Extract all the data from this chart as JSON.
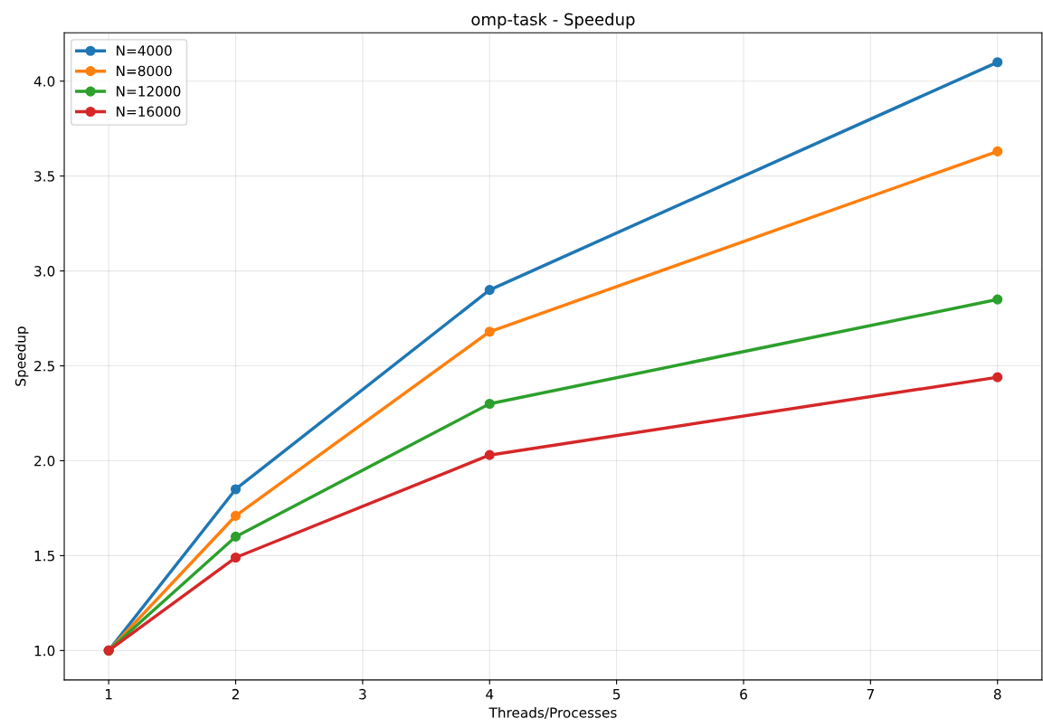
{
  "chart_data": {
    "type": "line",
    "title": "omp-task - Speedup",
    "xlabel": "Threads/Processes",
    "ylabel": "Speedup",
    "x": [
      1,
      2,
      4,
      8
    ],
    "series": [
      {
        "name": "N=4000",
        "color": "#1f77b4",
        "values": [
          1.0,
          1.85,
          2.9,
          4.1
        ]
      },
      {
        "name": "N=8000",
        "color": "#ff7f0e",
        "values": [
          1.0,
          1.71,
          2.68,
          3.63
        ]
      },
      {
        "name": "N=12000",
        "color": "#2ca02c",
        "values": [
          1.0,
          1.6,
          2.3,
          2.85
        ]
      },
      {
        "name": "N=16000",
        "color": "#d62728",
        "values": [
          1.0,
          1.49,
          2.03,
          2.44
        ]
      }
    ],
    "xlim": [
      0.65,
      8.35
    ],
    "xticks": [
      1,
      2,
      3,
      4,
      5,
      6,
      7,
      8
    ],
    "ylim": [
      0.845,
      4.255
    ],
    "yticks": [
      {
        "value": 1.0,
        "label": "1.0"
      },
      {
        "value": 1.5,
        "label": "1.5"
      },
      {
        "value": 2.0,
        "label": "2.0"
      },
      {
        "value": 2.5,
        "label": "2.5"
      },
      {
        "value": 3.0,
        "label": "3.0"
      },
      {
        "value": 3.5,
        "label": "3.5"
      },
      {
        "value": 4.0,
        "label": "4.0"
      }
    ],
    "grid": true,
    "legend": "top left",
    "marker": "circle",
    "line_style": "solid"
  }
}
